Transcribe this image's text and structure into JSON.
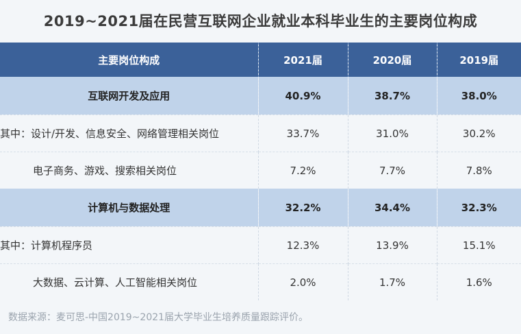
{
  "title": "2019~2021届在民营互联网企业就业本科毕业生的主要岗位构成",
  "header": [
    "主要岗位构成",
    "2021届",
    "2020届",
    "2019届"
  ],
  "rows": [
    {
      "type": "cat",
      "label": "互联网开发及应用",
      "values": [
        "40.9%",
        "38.7%",
        "38.0%"
      ]
    },
    {
      "type": "sub",
      "label": "其中：设计/开发、信息安全、网络管理相关岗位",
      "values": [
        "33.7%",
        "31.0%",
        "30.2%"
      ]
    },
    {
      "type": "sub",
      "label": "电子商务、游戏、搜索相关岗位",
      "values": [
        "7.2%",
        "7.7%",
        "7.8%"
      ]
    },
    {
      "type": "cat",
      "label": "计算机与数据处理",
      "values": [
        "32.2%",
        "34.4%",
        "32.3%"
      ]
    },
    {
      "type": "sub",
      "label": "其中：计算机程序员",
      "values": [
        "12.3%",
        "13.9%",
        "15.1%"
      ]
    },
    {
      "type": "sub",
      "label": "大数据、云计算、人工智能相关岗位",
      "values": [
        "2.0%",
        "1.7%",
        "1.6%"
      ]
    }
  ],
  "source": "数据来源：麦可思-中国2019~2021届大学毕业生培养质量跟踪评价。",
  "colors": {
    "header_bg": "#3b6199",
    "category_bg": "#c0d3ea",
    "page_bg": "#f3f6f9"
  },
  "chart_data": {
    "type": "table",
    "title": "2019~2021届在民营互联网企业就业本科毕业生的主要岗位构成",
    "columns": [
      "主要岗位构成",
      "2021届",
      "2020届",
      "2019届"
    ],
    "series": [
      {
        "name": "2021届",
        "values": [
          40.9,
          33.7,
          7.2,
          32.2,
          12.3,
          2.0
        ]
      },
      {
        "name": "2020届",
        "values": [
          38.7,
          31.0,
          7.7,
          34.4,
          13.9,
          1.7
        ]
      },
      {
        "name": "2019届",
        "values": [
          38.0,
          30.2,
          7.8,
          32.3,
          15.1,
          1.6
        ]
      }
    ],
    "categories": [
      "互联网开发及应用",
      "其中：设计/开发、信息安全、网络管理相关岗位",
      "电子商务、游戏、搜索相关岗位",
      "计算机与数据处理",
      "其中：计算机程序员",
      "大数据、云计算、人工智能相关岗位"
    ],
    "unit": "%"
  }
}
